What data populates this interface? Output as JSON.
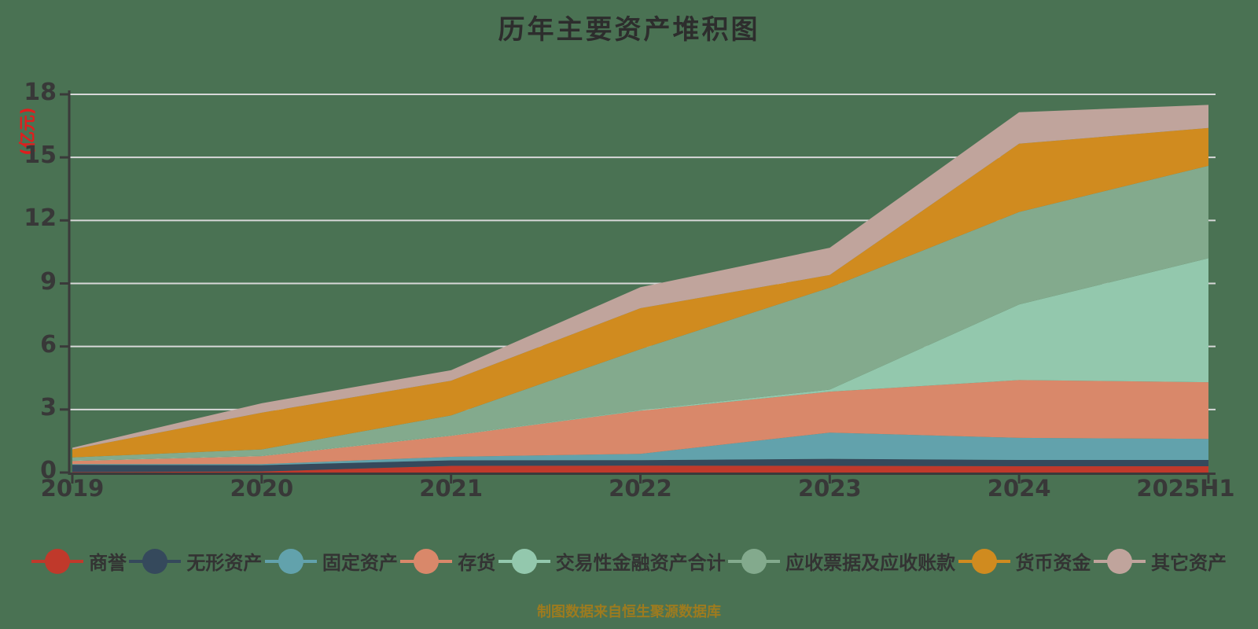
{
  "title": "历年主要资产堆积图",
  "footer": "制图数据来自恒生聚源数据库",
  "y_axis": {
    "unit_label": "(亿元)"
  },
  "colors": {
    "background": "#4a7253",
    "grid": "#d8d8d8",
    "axis": "#3a3a3a",
    "tick_label": "#383838",
    "unit_label": "#e11d1d",
    "title": "#2d2d2d",
    "footer": "#9d7b1f"
  },
  "chart_data": {
    "type": "area",
    "stacked": true,
    "title": "历年主要资产堆积图",
    "xlabel": "",
    "ylabel": "(亿元)",
    "ylim": [
      0,
      18
    ],
    "yticks": [
      0,
      3,
      6,
      9,
      12,
      15,
      18
    ],
    "grid": true,
    "legend_position": "bottom",
    "categories": [
      "2019",
      "2020",
      "2021",
      "2022",
      "2023",
      "2024",
      "2025H1"
    ],
    "series": [
      {
        "name": "商誉",
        "color": "#c0392b",
        "values": [
          0.02,
          0.05,
          0.32,
          0.33,
          0.32,
          0.3,
          0.3
        ]
      },
      {
        "name": "无形资产",
        "color": "#35495c",
        "values": [
          0.35,
          0.3,
          0.26,
          0.26,
          0.33,
          0.3,
          0.3
        ]
      },
      {
        "name": "固定资产",
        "color": "#62a2ac",
        "values": [
          0.03,
          0.05,
          0.17,
          0.3,
          1.25,
          1.05,
          1.0
        ]
      },
      {
        "name": "存货",
        "color": "#d9886a",
        "values": [
          0.15,
          0.38,
          1.0,
          2.05,
          1.95,
          2.75,
          2.7
        ]
      },
      {
        "name": "交易性金融资产合计",
        "color": "#93c8ad",
        "values": [
          0.02,
          0.02,
          0.02,
          0.03,
          0.1,
          3.6,
          5.9
        ]
      },
      {
        "name": "应收票据及应收账款",
        "color": "#83aa8d",
        "values": [
          0.15,
          0.3,
          0.95,
          2.9,
          4.85,
          4.4,
          4.4
        ]
      },
      {
        "name": "货币资金",
        "color": "#d08b1f",
        "values": [
          0.38,
          1.75,
          1.65,
          1.95,
          0.6,
          3.25,
          1.8
        ]
      },
      {
        "name": "其它资产",
        "color": "#c0a49c",
        "values": [
          0.08,
          0.45,
          0.5,
          1.0,
          1.3,
          1.5,
          1.1
        ]
      }
    ],
    "totals": [
      1.18,
      3.3,
      4.87,
      8.82,
      10.7,
      17.15,
      17.5
    ]
  }
}
